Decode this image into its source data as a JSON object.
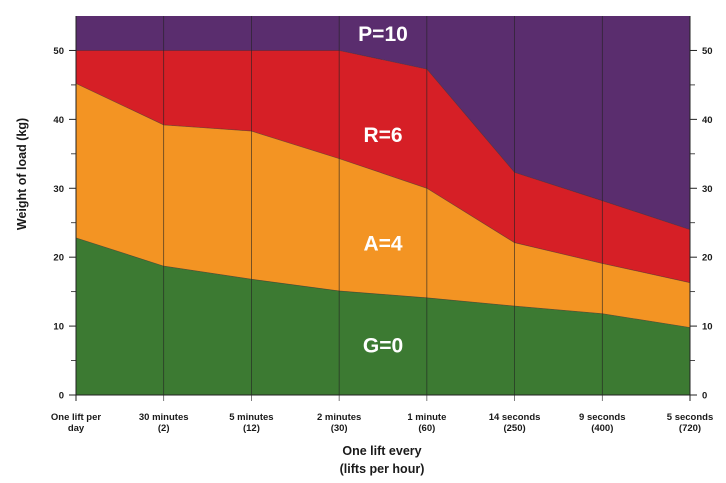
{
  "chart_data": {
    "type": "area",
    "ylabel": "Weight of load (kg)",
    "xlabel_line1": "One lift every",
    "xlabel_line2": "(lifts per hour)",
    "ylim": [
      0,
      55
    ],
    "yticks": [
      0,
      10,
      20,
      30,
      40,
      50
    ],
    "y_minor_ticks": [
      5,
      15,
      25,
      35,
      45
    ],
    "grid": "vertical lines at each category",
    "categories": [
      [
        "One lift per",
        "day"
      ],
      [
        "30 minutes",
        "(2)"
      ],
      [
        "5 minutes",
        "(12)"
      ],
      [
        "2 minutes",
        "(30)"
      ],
      [
        "1 minute",
        "(60)"
      ],
      [
        "14 seconds",
        "(250)"
      ],
      [
        "9 seconds",
        "(400)"
      ],
      [
        "5 seconds",
        "(720)"
      ]
    ],
    "series": [
      {
        "name": "G=0",
        "color": "#3c7a32",
        "upper": [
          22.8,
          18.7,
          16.8,
          15.1,
          14.1,
          12.9,
          11.8,
          9.8
        ]
      },
      {
        "name": "A=4",
        "color": "#f39423",
        "upper": [
          45.2,
          39.2,
          38.3,
          34.3,
          30.0,
          22.1,
          19.1,
          16.3
        ]
      },
      {
        "name": "R=6",
        "color": "#d61f26",
        "upper": [
          50,
          50,
          50,
          50,
          47.3,
          32.3,
          28.2,
          24.0
        ]
      },
      {
        "name": "P=10",
        "color": "#5a2d6e",
        "upper": [
          55,
          55,
          55,
          55,
          55,
          55,
          55,
          55
        ]
      }
    ],
    "zone_labels": [
      {
        "text": "P=10",
        "x_index": 3.5,
        "y": 52.4
      },
      {
        "text": "R=6",
        "x_index": 3.5,
        "y": 37.7
      },
      {
        "text": "A=4",
        "x_index": 3.5,
        "y": 22.0
      },
      {
        "text": "G=0",
        "x_index": 3.5,
        "y": 7.2
      }
    ]
  }
}
